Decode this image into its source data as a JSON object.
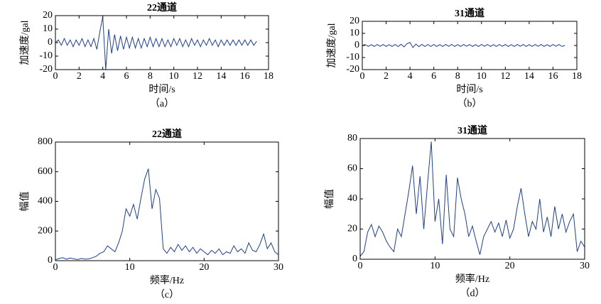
{
  "chart_data": [
    {
      "type": "line",
      "title": "22通道",
      "xlabel": "时间/s",
      "ylabel": "加速度/gal",
      "caption": "（a）",
      "color": "#1f3f8f",
      "xlim": [
        0,
        18
      ],
      "ylim": [
        -20,
        20
      ],
      "xticks": [
        0,
        2,
        4,
        6,
        8,
        10,
        12,
        14,
        16,
        18
      ],
      "yticks": [
        -20,
        -10,
        0,
        10,
        20
      ],
      "x": [
        0,
        0.25,
        0.5,
        0.75,
        1,
        1.25,
        1.5,
        1.75,
        2,
        2.25,
        2.5,
        2.75,
        3,
        3.25,
        3.5,
        3.75,
        4,
        4.25,
        4.5,
        4.75,
        5,
        5.25,
        5.5,
        5.75,
        6,
        6.25,
        6.5,
        6.75,
        7,
        7.25,
        7.5,
        7.75,
        8,
        8.25,
        8.5,
        8.75,
        9,
        9.25,
        9.5,
        9.75,
        10,
        10.25,
        10.5,
        10.75,
        11,
        11.25,
        11.5,
        11.75,
        12,
        12.25,
        12.5,
        12.75,
        13,
        13.25,
        13.5,
        13.75,
        14,
        14.25,
        14.5,
        14.75,
        15,
        15.25,
        15.5,
        15.75,
        16,
        16.25,
        16.5,
        16.75,
        17
      ],
      "values": [
        0,
        2,
        -2,
        3,
        -2,
        2,
        -3,
        2,
        -2,
        3,
        -3,
        2,
        -3,
        3,
        -5,
        8,
        19,
        -20,
        10,
        -8,
        6,
        -6,
        5,
        -5,
        4,
        -4,
        4,
        -4,
        3,
        -4,
        3,
        -3,
        4,
        -3,
        3,
        -3,
        3,
        -3,
        2,
        -3,
        3,
        -2,
        3,
        -3,
        2,
        -3,
        3,
        -2,
        2,
        -3,
        2,
        -2,
        3,
        -2,
        2,
        -3,
        2,
        -2,
        2,
        -2,
        2,
        -2,
        2,
        -2,
        2,
        -2,
        2,
        -2,
        1
      ]
    },
    {
      "type": "line",
      "title": "31通道",
      "xlabel": "时间/s",
      "ylabel": "加速度/gal",
      "caption": "（b）",
      "color": "#1f3f8f",
      "xlim": [
        0,
        18
      ],
      "ylim": [
        -20,
        20
      ],
      "xticks": [
        0,
        2,
        4,
        6,
        8,
        10,
        12,
        14,
        16,
        18
      ],
      "yticks": [
        -20,
        -10,
        0,
        10,
        20
      ],
      "x": [
        0,
        0.25,
        0.5,
        0.75,
        1,
        1.25,
        1.5,
        1.75,
        2,
        2.25,
        2.5,
        2.75,
        3,
        3.25,
        3.5,
        3.75,
        4,
        4.25,
        4.5,
        4.75,
        5,
        5.25,
        5.5,
        5.75,
        6,
        6.25,
        6.5,
        6.75,
        7,
        7.25,
        7.5,
        7.75,
        8,
        8.25,
        8.5,
        8.75,
        9,
        9.25,
        9.5,
        9.75,
        10,
        10.25,
        10.5,
        10.75,
        11,
        11.25,
        11.5,
        11.75,
        12,
        12.25,
        12.5,
        12.75,
        13,
        13.25,
        13.5,
        13.75,
        14,
        14.25,
        14.5,
        14.75,
        15,
        15.25,
        15.5,
        15.75,
        16,
        16.25,
        16.5,
        16.75,
        17
      ],
      "values": [
        0,
        0.8,
        -0.8,
        0.7,
        -0.8,
        0.8,
        -0.7,
        0.8,
        -0.8,
        0.7,
        -0.8,
        0.8,
        -0.9,
        1,
        -1.2,
        1.5,
        2.5,
        -1.8,
        1.2,
        -1,
        0.9,
        -0.9,
        0.8,
        -0.8,
        0.8,
        -0.8,
        0.7,
        -0.8,
        0.8,
        -0.7,
        0.8,
        -0.8,
        0.7,
        -0.8,
        0.8,
        -0.7,
        0.8,
        -0.8,
        0.7,
        -0.8,
        0.8,
        -0.7,
        0.8,
        -0.8,
        0.7,
        -0.8,
        0.8,
        -0.7,
        0.8,
        -0.8,
        0.7,
        -0.8,
        0.8,
        -0.7,
        0.8,
        -0.8,
        0.7,
        -0.8,
        0.8,
        -0.7,
        0.8,
        -0.8,
        0.7,
        -0.8,
        0.8,
        -0.7,
        0.8,
        -0.8,
        0
      ]
    },
    {
      "type": "line",
      "title": "22通道",
      "xlabel": "频率/Hz",
      "ylabel": "幅值",
      "caption": "（c）",
      "color": "#1f3f8f",
      "xlim": [
        0,
        30
      ],
      "ylim": [
        0,
        800
      ],
      "xticks": [
        0,
        10,
        20,
        30
      ],
      "yticks": [
        0,
        200,
        400,
        600,
        800
      ],
      "x": [
        0,
        0.5,
        1,
        1.5,
        2,
        2.5,
        3,
        3.5,
        4,
        4.5,
        5,
        5.5,
        6,
        6.5,
        7,
        7.5,
        8,
        8.5,
        9,
        9.5,
        10,
        10.5,
        11,
        11.5,
        12,
        12.5,
        13,
        13.5,
        14,
        14.5,
        15,
        15.5,
        16,
        16.5,
        17,
        17.5,
        18,
        18.5,
        19,
        19.5,
        20,
        20.5,
        21,
        21.5,
        22,
        22.5,
        23,
        23.5,
        24,
        24.5,
        25,
        25.5,
        26,
        26.5,
        27,
        27.5,
        28,
        28.5,
        29,
        29.5,
        30
      ],
      "values": [
        5,
        15,
        20,
        10,
        18,
        12,
        8,
        15,
        10,
        12,
        20,
        30,
        50,
        60,
        100,
        80,
        60,
        120,
        200,
        350,
        300,
        380,
        280,
        420,
        550,
        620,
        350,
        480,
        420,
        80,
        50,
        90,
        60,
        110,
        70,
        100,
        60,
        90,
        50,
        80,
        60,
        40,
        70,
        50,
        80,
        40,
        60,
        50,
        100,
        60,
        80,
        50,
        120,
        70,
        60,
        110,
        180,
        80,
        120,
        60,
        40
      ]
    },
    {
      "type": "line",
      "title": "31通道",
      "xlabel": "频率/Hz",
      "ylabel": "幅值",
      "caption": "（d）",
      "color": "#1f3f8f",
      "xlim": [
        0,
        30
      ],
      "ylim": [
        0,
        80
      ],
      "xticks": [
        0,
        10,
        20,
        30
      ],
      "yticks": [
        0,
        20,
        40,
        60,
        80
      ],
      "x": [
        0,
        0.5,
        1,
        1.5,
        2,
        2.5,
        3,
        3.5,
        4,
        4.5,
        5,
        5.5,
        6,
        6.5,
        7,
        7.5,
        8,
        8.5,
        9,
        9.5,
        10,
        10.5,
        11,
        11.5,
        12,
        12.5,
        13,
        13.5,
        14,
        14.5,
        15,
        15.5,
        16,
        16.5,
        17,
        17.5,
        18,
        18.5,
        19,
        19.5,
        20,
        20.5,
        21,
        21.5,
        22,
        22.5,
        23,
        23.5,
        24,
        24.5,
        25,
        25.5,
        26,
        26.5,
        27,
        27.5,
        28,
        28.5,
        29,
        29.5,
        30
      ],
      "values": [
        2,
        5,
        18,
        23,
        15,
        22,
        18,
        12,
        8,
        5,
        20,
        15,
        30,
        45,
        62,
        30,
        55,
        20,
        50,
        78,
        25,
        40,
        10,
        56,
        20,
        15,
        54,
        40,
        30,
        15,
        22,
        12,
        3,
        15,
        20,
        25,
        18,
        24,
        15,
        26,
        14,
        20,
        35,
        47,
        30,
        15,
        25,
        20,
        40,
        18,
        28,
        15,
        35,
        20,
        30,
        18,
        25,
        30,
        5,
        12,
        8
      ]
    }
  ]
}
